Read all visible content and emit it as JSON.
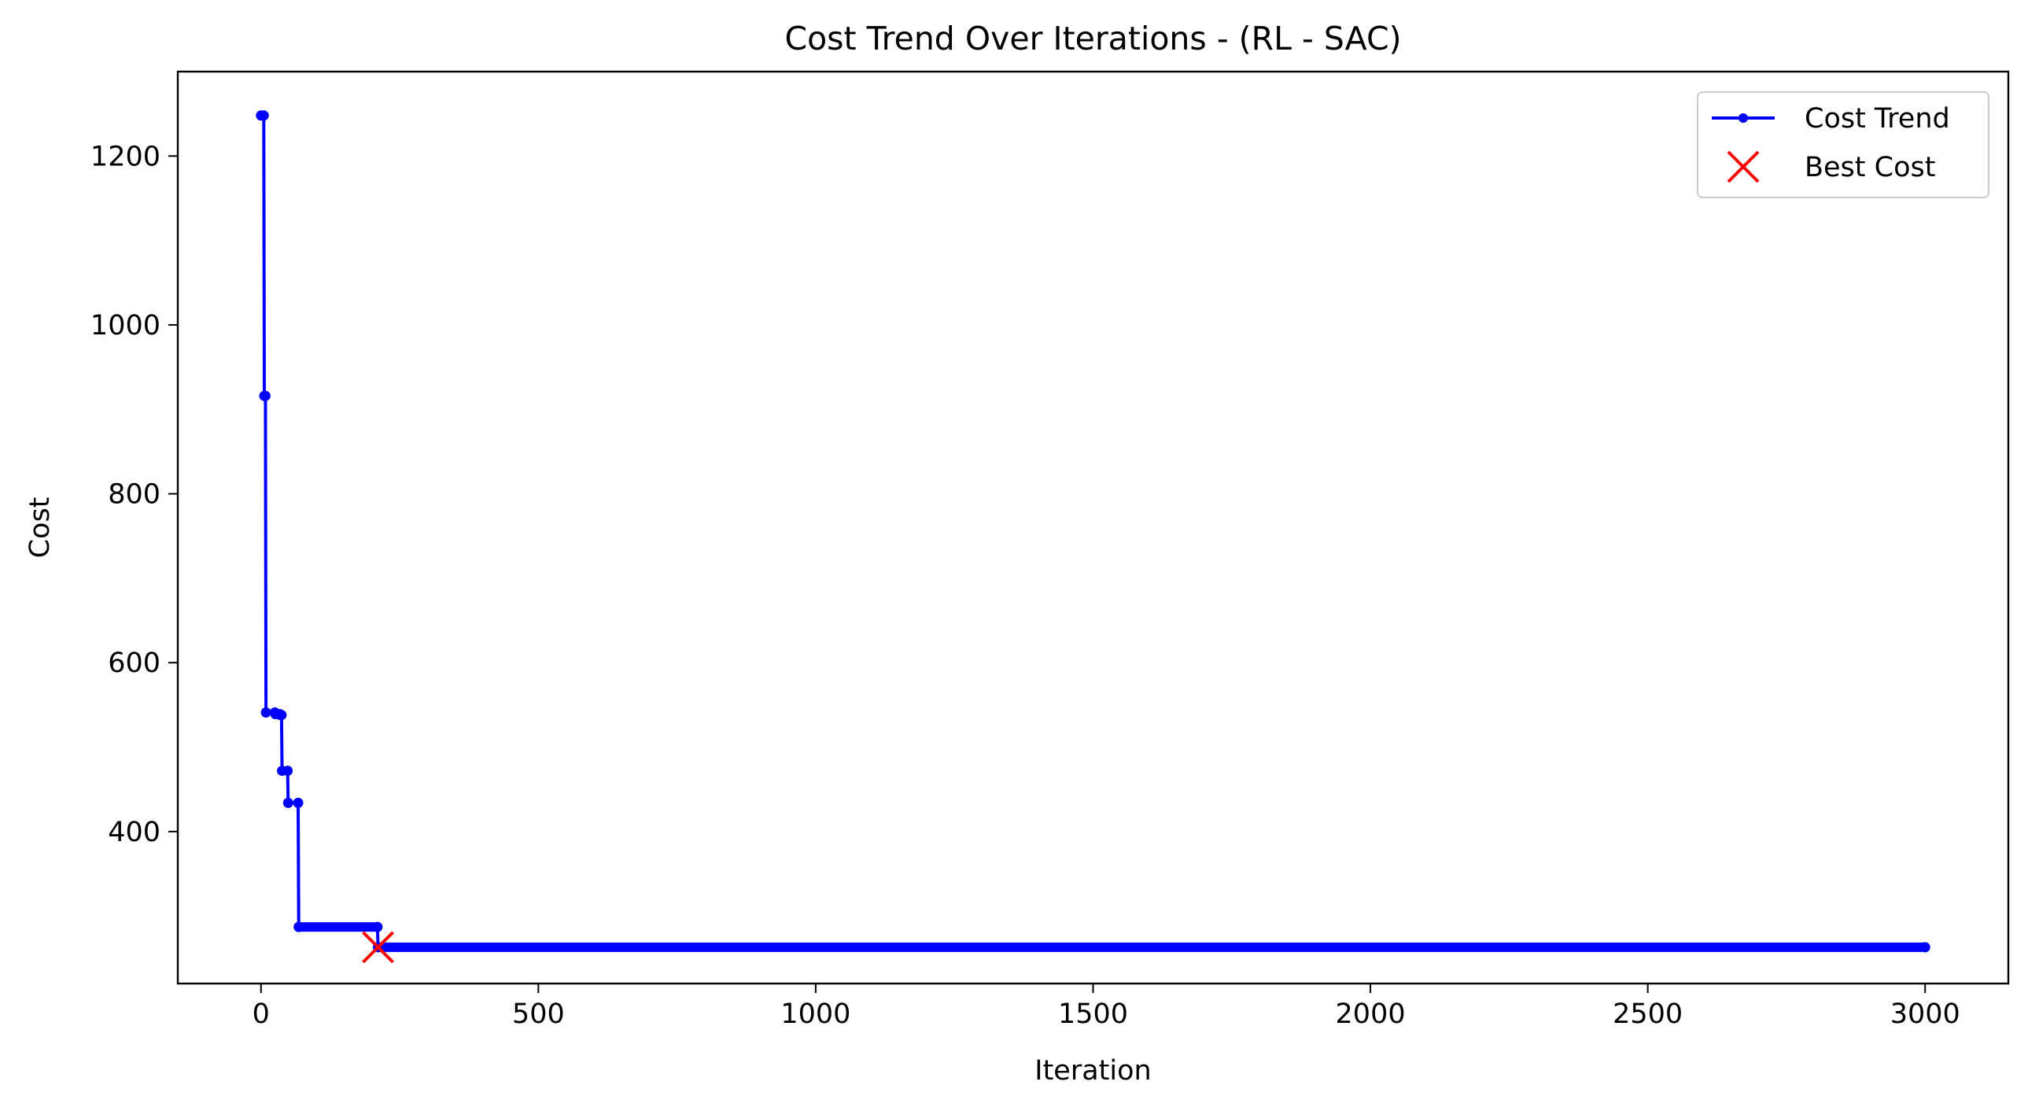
{
  "chart_data": {
    "type": "line",
    "title": "Cost Trend Over Iterations - (RL - SAC)",
    "xlabel": "Iteration",
    "ylabel": "Cost",
    "xlim": [
      -150,
      3150
    ],
    "ylim": [
      220,
      1300
    ],
    "xticks": [
      0,
      500,
      1000,
      1500,
      2000,
      2500,
      3000
    ],
    "yticks": [
      400,
      600,
      800,
      1000,
      1200
    ],
    "grid": false,
    "legend_position": "top-right",
    "series": [
      {
        "name": "Cost Trend",
        "color": "#0000ff",
        "marker": "point",
        "steps": [
          {
            "x": [
              0,
              5
            ],
            "y": 1248
          },
          {
            "x": [
              6,
              8
            ],
            "y": 916
          },
          {
            "x": [
              9,
              25
            ],
            "y": 541
          },
          {
            "x": [
              26,
              34
            ],
            "y": 539
          },
          {
            "x": [
              35,
              37
            ],
            "y": 538
          },
          {
            "x": [
              38,
              48
            ],
            "y": 472
          },
          {
            "x": [
              49,
              67
            ],
            "y": 434
          },
          {
            "x": [
              68,
              210
            ],
            "y": 287
          },
          {
            "x": [
              211,
              3000
            ],
            "y": 263
          }
        ]
      },
      {
        "name": "Best Cost",
        "color": "#ff0000",
        "marker": "x",
        "points": [
          {
            "x": 211,
            "y": 263
          }
        ]
      }
    ]
  }
}
